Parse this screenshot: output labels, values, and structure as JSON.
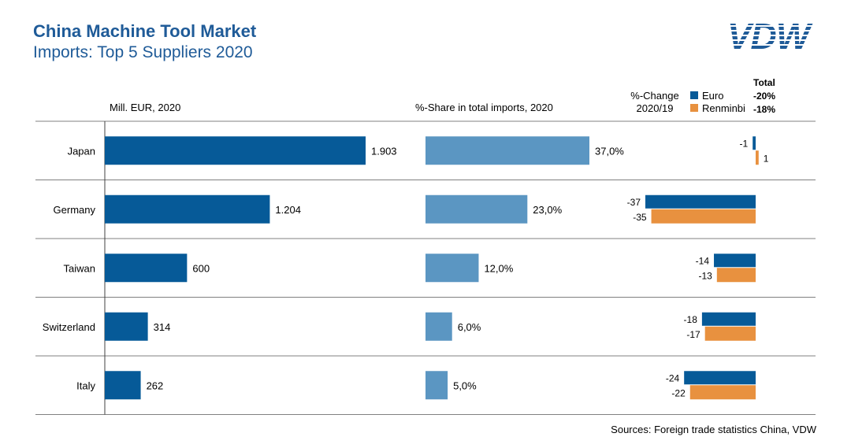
{
  "header": {
    "title": "China Machine Tool Market",
    "subtitle": "Imports: Top 5 Suppliers 2020",
    "logo_text": "VDW"
  },
  "columns": {
    "value_header": "Mill. EUR, 2020",
    "share_header": "%-Share  in total imports, 2020",
    "change_header_line1": "%-Change",
    "change_header_line2": "2020/19"
  },
  "legend": {
    "euro": "Euro",
    "renminbi": "Renminbi",
    "total_label": "Total",
    "total_euro": "-20%",
    "total_renminbi": "-18%"
  },
  "colors": {
    "title": "#1f5b98",
    "value_bar": "#065a98",
    "share_bar": "#5b96c2",
    "euro": "#065a98",
    "renminbi": "#e8913f",
    "rule": "#808080"
  },
  "chart_data": {
    "type": "bar",
    "categories": [
      "Japan",
      "Germany",
      "Taiwan",
      "Switzerland",
      "Italy"
    ],
    "panels": [
      {
        "name": "Mill. EUR, 2020",
        "values": [
          1903,
          1204,
          600,
          314,
          262
        ],
        "labels": [
          "1.903",
          "1.204",
          "600",
          "314",
          "262"
        ]
      },
      {
        "name": "%-Share  in total imports, 2020",
        "values": [
          37.0,
          23.0,
          12.0,
          6.0,
          5.0
        ],
        "labels": [
          "37,0%",
          "23,0%",
          "12,0%",
          "6,0%",
          "5,0%"
        ]
      }
    ],
    "change_series": [
      {
        "name": "Euro",
        "values": [
          -1,
          -37,
          -14,
          -18,
          -24
        ],
        "labels": [
          "-1",
          "-37",
          "-14",
          "-18",
          "-24"
        ]
      },
      {
        "name": "Renminbi",
        "values": [
          1,
          -35,
          -13,
          -17,
          -22
        ],
        "labels": [
          "1",
          "-35",
          "-13",
          "-17",
          "-22"
        ]
      }
    ]
  },
  "footer": {
    "source": "Sources: Foreign trade statistics China, VDW"
  }
}
